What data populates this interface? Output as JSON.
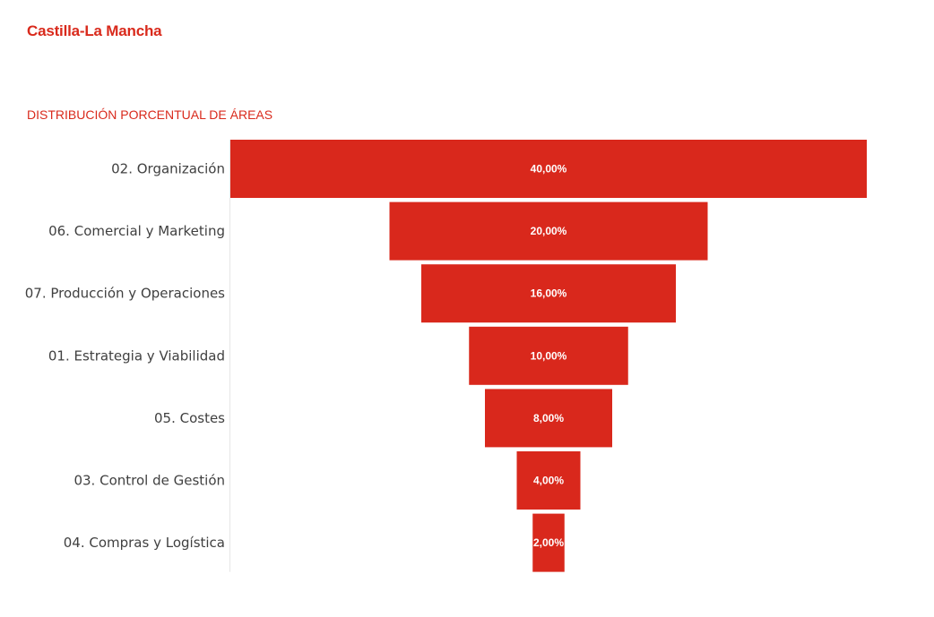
{
  "header": {
    "region": "Castilla-La Mancha"
  },
  "chart_data": {
    "type": "funnel",
    "title": "DISTRIBUCIÓN PORCENTUAL DE ÁREAS",
    "categories": [
      "02. Organización",
      "06. Comercial y Marketing",
      "07. Producción y Operaciones",
      "01. Estrategia y Viabilidad",
      "05. Costes",
      "03. Control de Gestión",
      "04. Compras y Logística"
    ],
    "values": [
      40,
      20,
      16,
      10,
      8,
      4,
      2
    ],
    "value_labels": [
      "40,00%",
      "20,00%",
      "16,00%",
      "10,00%",
      "8,00%",
      "4,00%",
      "2,00%"
    ],
    "color": "#d9281c"
  }
}
